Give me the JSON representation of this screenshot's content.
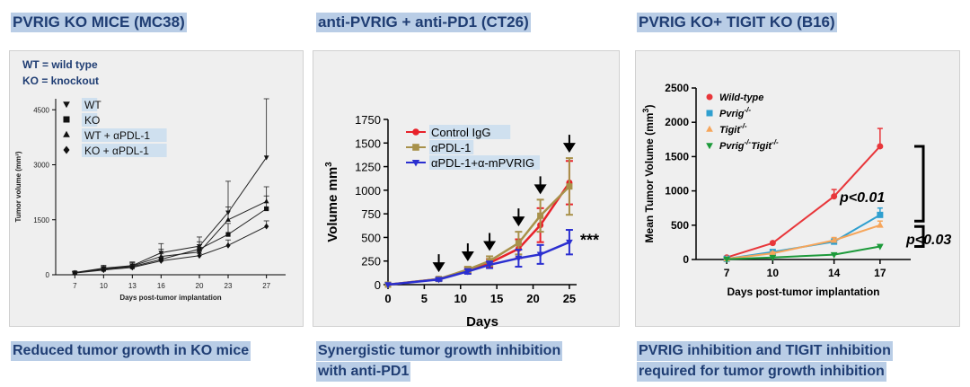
{
  "titles": [
    "PVRIG KO MICE (MC38)",
    "anti-PVRIG + anti-PD1 (CT26)",
    "PVRIG KO+ TIGIT KO (B16)"
  ],
  "captions": {
    "left": "Reduced tumor growth in KO mice",
    "middle_1": "Synergistic tumor growth inhibition",
    "middle_2": "with anti-PD1",
    "right_1": "PVRIG inhibition and TIGIT inhibition",
    "right_2": "required for tumor growth inhibition"
  },
  "notes": {
    "wt": "WT = wild type",
    "ko": "KO = knockout"
  },
  "chart_data": [
    {
      "type": "line",
      "xlabel": "Days post-tumor implantation",
      "ylabel": "Tumor volume (mm³)",
      "x": [
        7,
        10,
        13,
        16,
        20,
        23,
        27
      ],
      "xlim": [
        5,
        29
      ],
      "ylim": [
        0,
        4800
      ],
      "yticks": [
        0,
        1500,
        3000,
        4500
      ],
      "legend": "top-left",
      "series": [
        {
          "name": "WT",
          "marker": "triangle-down",
          "values": [
            60,
            180,
            250,
            600,
            780,
            1700,
            3200
          ],
          "err": [
            30,
            80,
            100,
            250,
            250,
            850,
            1600
          ]
        },
        {
          "name": "KO",
          "marker": "square",
          "values": [
            50,
            150,
            220,
            420,
            700,
            1100,
            1800
          ],
          "err": [
            30,
            60,
            80,
            150,
            200,
            300,
            350
          ]
        },
        {
          "name": "WT + αPDL-1",
          "marker": "triangle-up",
          "values": [
            55,
            160,
            240,
            500,
            620,
            1500,
            2000
          ],
          "err": [
            30,
            70,
            90,
            200,
            200,
            350,
            400
          ]
        },
        {
          "name": "KO + αPDL-1",
          "marker": "diamond",
          "values": [
            45,
            130,
            200,
            380,
            520,
            800,
            1320
          ],
          "err": [
            25,
            50,
            60,
            100,
            120,
            150,
            150
          ]
        }
      ]
    },
    {
      "type": "line",
      "xlabel": "Days",
      "ylabel": "Volume mm",
      "ylabel_sup": "3",
      "x": [
        0,
        7,
        11,
        14,
        18,
        21,
        25
      ],
      "xticks": [
        0,
        5,
        10,
        15,
        20,
        25
      ],
      "xlim": [
        0,
        26
      ],
      "ylim": [
        0,
        1750
      ],
      "yticks": [
        0,
        250,
        500,
        750,
        1000,
        1250,
        1500,
        1750
      ],
      "legend": "top-left",
      "arrows_at": [
        7,
        11,
        14,
        18,
        21,
        25
      ],
      "annotation": "***",
      "series": [
        {
          "name": "Control IgG",
          "color": "#e8222a",
          "marker": "circle",
          "values": [
            0,
            60,
            150,
            230,
            380,
            630,
            1080
          ],
          "err": [
            0,
            15,
            30,
            40,
            100,
            180,
            230
          ]
        },
        {
          "name": "αPDL-1",
          "color": "#a8914a",
          "marker": "square",
          "values": [
            0,
            60,
            160,
            250,
            440,
            730,
            1040
          ],
          "err": [
            0,
            15,
            30,
            50,
            120,
            170,
            300
          ]
        },
        {
          "name": "αPDL-1+α-mPVRIG",
          "color": "#2b2fd0",
          "marker": "triangle-down",
          "values": [
            0,
            55,
            140,
            210,
            280,
            320,
            450
          ],
          "err": [
            0,
            15,
            25,
            35,
            90,
            100,
            130
          ]
        }
      ]
    },
    {
      "type": "line",
      "xlabel": "Days post-tumor implantation",
      "ylabel": "Mean Tumor Volume (mm",
      "ylabel_sup": "3",
      "ylabel_tail": ")",
      "x": [
        7,
        10,
        14,
        17
      ],
      "xlim": [
        5,
        19
      ],
      "ylim": [
        0,
        2500
      ],
      "yticks": [
        0,
        500,
        1000,
        1500,
        2000,
        2500
      ],
      "legend": "top-left",
      "pvalues": [
        "p<0.01",
        "p<0.03"
      ],
      "series": [
        {
          "name": "Wild-type",
          "sup": "",
          "color": "#e8363a",
          "marker": "circle",
          "values": [
            30,
            240,
            920,
            1650
          ],
          "err": [
            8,
            20,
            100,
            260
          ]
        },
        {
          "name": "Pvrig",
          "sup": "-/-",
          "color": "#2f9fcf",
          "marker": "square",
          "values": [
            10,
            110,
            260,
            650
          ],
          "err": [
            5,
            20,
            40,
            100
          ]
        },
        {
          "name": "Tigit",
          "sup": "-/-",
          "color": "#f6a55a",
          "marker": "triangle-up",
          "values": [
            10,
            90,
            280,
            500
          ],
          "err": [
            5,
            20,
            40,
            60
          ]
        },
        {
          "name": "Pvrig",
          "sup": "-/-",
          "name2": "Tigit",
          "sup2": "-/-",
          "color": "#1c9a3a",
          "marker": "triangle-down",
          "values": [
            5,
            30,
            70,
            190
          ],
          "err": [
            3,
            10,
            15,
            25
          ]
        }
      ]
    }
  ]
}
